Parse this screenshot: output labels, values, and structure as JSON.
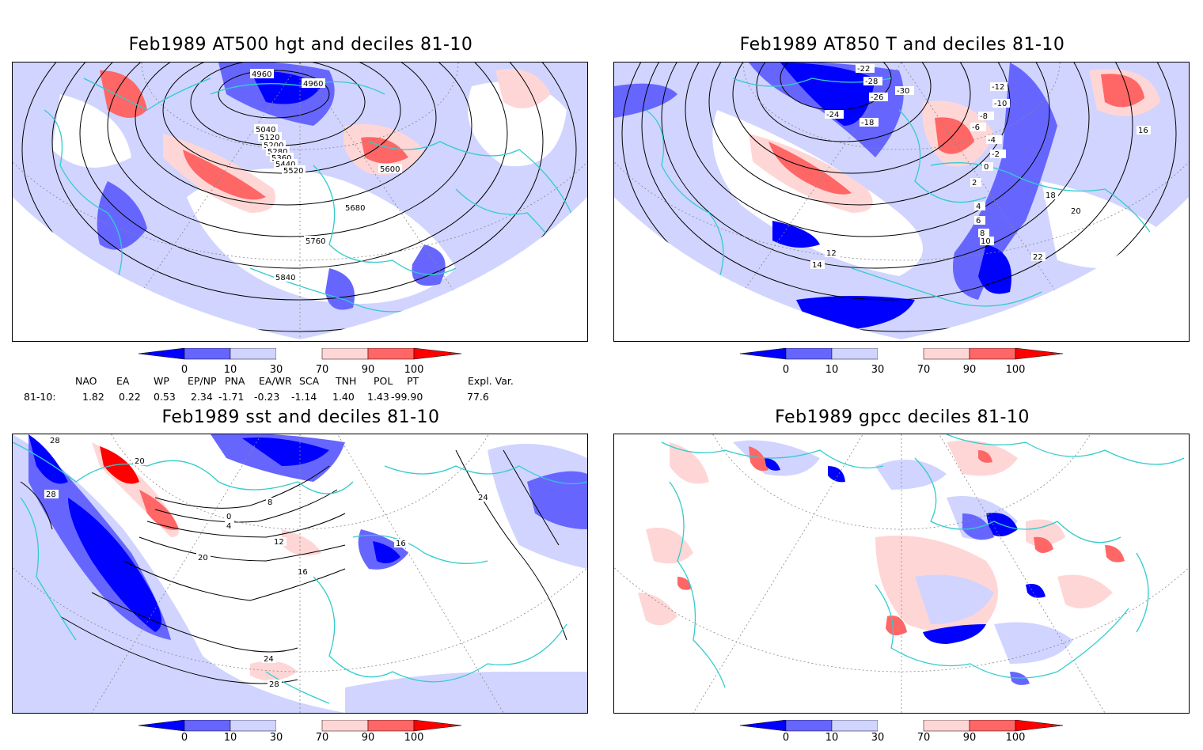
{
  "panels": [
    {
      "id": "hgt500",
      "title": "Feb1989 AT500 hgt and deciles 81-10",
      "contour_labels": [
        "4960",
        "4960",
        "5040",
        "5120",
        "5200",
        "5280",
        "5360",
        "5440",
        "5520",
        "5600",
        "5680",
        "5760",
        "5840"
      ]
    },
    {
      "id": "t850",
      "title": "Feb1989 AT850 T and deciles 81-10",
      "contour_labels": [
        "-22",
        "-28",
        "-26",
        "-30",
        "-24",
        "-18",
        "-12",
        "-10",
        "-8",
        "-6",
        "-4",
        "-2",
        "0",
        "2",
        "4",
        "6",
        "8",
        "10",
        "12",
        "14",
        "16",
        "18",
        "20",
        "22"
      ]
    },
    {
      "id": "sst",
      "title": "Feb1989 sst and deciles 81-10",
      "contour_labels": [
        "28",
        "20",
        "28",
        "0",
        "4",
        "8",
        "12",
        "16",
        "20",
        "24",
        "28",
        "16",
        "24"
      ]
    },
    {
      "id": "gpcc",
      "title": "Feb1989 gpcc deciles 81-10",
      "contour_labels": []
    }
  ],
  "colorbar": {
    "labels": [
      "0",
      "10",
      "30",
      "70",
      "90",
      "100"
    ],
    "colors": [
      "#0000ff",
      "#6666ff",
      "#d0d4ff",
      "#ffffff",
      "#ffd6d6",
      "#ff6666",
      "#ff0000"
    ]
  },
  "indices": {
    "headers": [
      "NAO",
      "EA",
      "WP",
      "EP/NP",
      "PNA",
      "EA/WR",
      "SCA",
      "TNH",
      "POL",
      "PT",
      "Expl. Var."
    ],
    "row_label": "81-10:",
    "values": [
      "1.82",
      "0.22",
      "0.53",
      "2.34",
      "-1.71",
      "-0.23",
      "-1.14",
      "1.40",
      "1.43",
      "-99.90",
      "77.6"
    ]
  },
  "colors": {
    "coast": "#33cccc",
    "contour": "#000000",
    "grid": "#888888"
  }
}
